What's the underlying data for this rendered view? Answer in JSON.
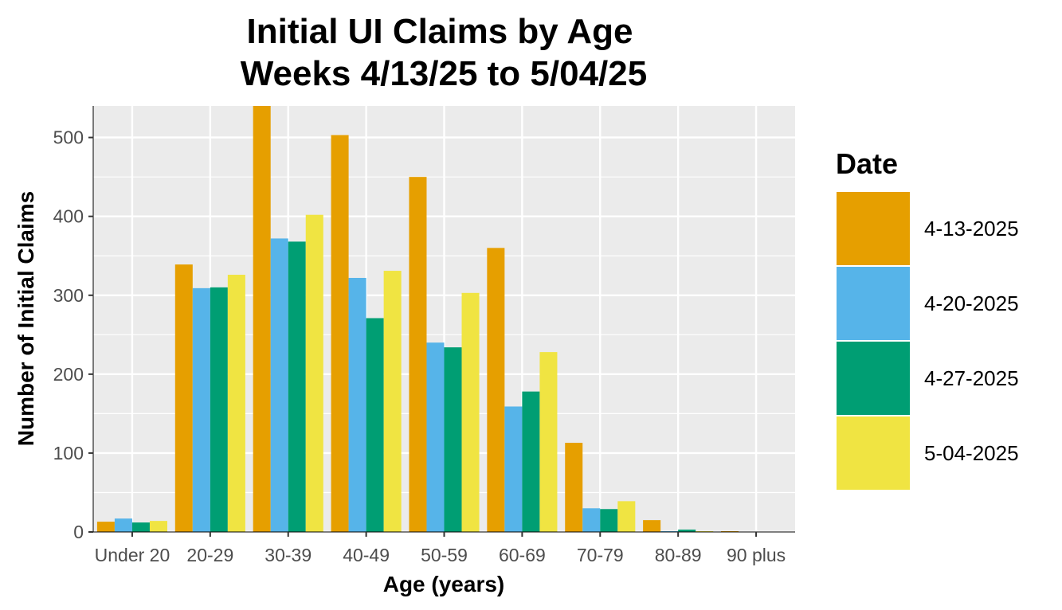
{
  "chart_data": {
    "type": "bar",
    "title": "Initial UI Claims by Age",
    "subtitle": "Weeks 4/13/25 to 5/04/25",
    "xlabel": "Age (years)",
    "ylabel": "Number of Initial Claims",
    "categories": [
      "Under 20",
      "20-29",
      "30-39",
      "40-49",
      "50-59",
      "60-69",
      "70-79",
      "80-89",
      "90 plus"
    ],
    "series": [
      {
        "name": "4-13-2025",
        "color": "#E69F00",
        "values": [
          13,
          339,
          540,
          503,
          450,
          360,
          113,
          15,
          1
        ]
      },
      {
        "name": "4-20-2025",
        "color": "#56B4E9",
        "values": [
          17,
          309,
          372,
          322,
          240,
          159,
          30,
          1,
          0
        ]
      },
      {
        "name": "4-27-2025",
        "color": "#009E73",
        "values": [
          12,
          310,
          368,
          271,
          234,
          178,
          29,
          3,
          0
        ]
      },
      {
        "name": "5-04-2025",
        "color": "#F0E442",
        "values": [
          14,
          326,
          402,
          331,
          303,
          228,
          39,
          1,
          0
        ]
      }
    ],
    "yticks": [
      0,
      100,
      200,
      300,
      400,
      500
    ],
    "ylim": [
      0,
      540
    ],
    "legend_title": "Date",
    "legend_position": "right",
    "grid": true,
    "panel_background": "#EBEBEB"
  }
}
